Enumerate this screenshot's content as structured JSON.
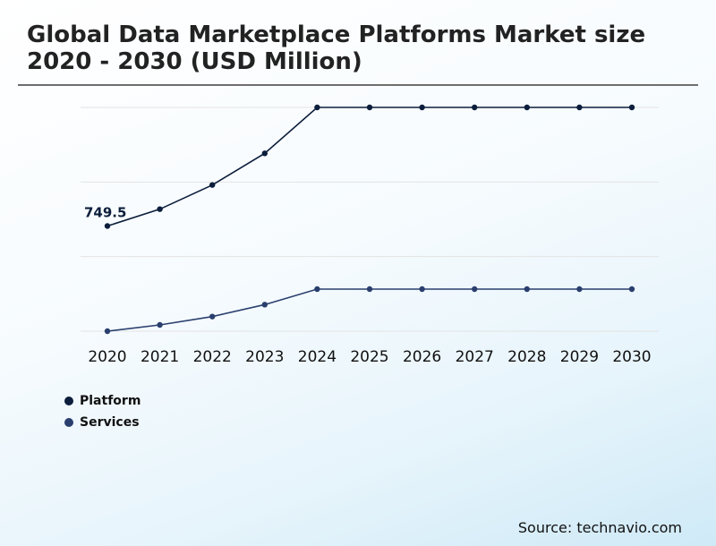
{
  "title": "Global Data Marketplace Platforms Market size 2020 - 2030 (USD Million)",
  "source": "Source: technavio.com",
  "colors": {
    "platform": "#0c1e3c",
    "services": "#2a3f6e",
    "grid": "#e3e3e3"
  },
  "chart_data": {
    "type": "line",
    "categories": [
      "2020",
      "2021",
      "2022",
      "2023",
      "2024",
      "2025",
      "2026",
      "2027",
      "2028",
      "2029",
      "2030"
    ],
    "series": [
      {
        "name": "Platform",
        "values": [
          749.5,
          806,
          887,
          993,
          1147,
          1147,
          1147,
          1147,
          1147,
          1147,
          1147
        ]
      },
      {
        "name": "Services",
        "values": [
          397,
          418,
          446,
          486,
          538,
          538,
          538,
          538,
          538,
          538,
          538
        ]
      }
    ],
    "data_labels": [
      {
        "series": 0,
        "index": 0,
        "text": "749.5"
      }
    ],
    "ylim": [
      397,
      1147
    ],
    "grid": true,
    "legend": "bottom-left",
    "xlabel": "",
    "ylabel": ""
  }
}
